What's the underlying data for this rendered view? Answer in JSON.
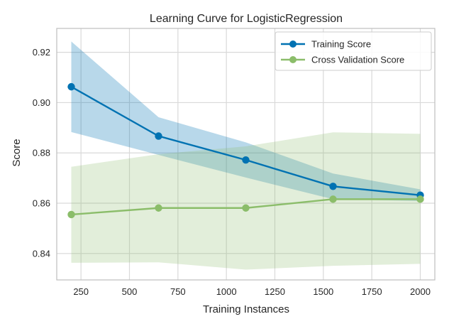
{
  "chart_data": {
    "type": "line",
    "title": "Learning Curve for LogisticRegression",
    "xlabel": "Training Instances",
    "ylabel": "Score",
    "xlim": [
      125,
      2075
    ],
    "ylim": [
      0.8295,
      0.9295
    ],
    "xticks": [
      250,
      500,
      750,
      1000,
      1250,
      1500,
      1750,
      2000
    ],
    "yticks": [
      0.84,
      0.86,
      0.88,
      0.9,
      0.92
    ],
    "xtick_labels": [
      "250",
      "500",
      "750",
      "1000",
      "1250",
      "1500",
      "1750",
      "2000"
    ],
    "ytick_labels": [
      "0.84",
      "0.86",
      "0.88",
      "0.90",
      "0.92"
    ],
    "grid": true,
    "legend_position": "top-right",
    "x": [
      200,
      650,
      1100,
      1550,
      2000
    ],
    "series": [
      {
        "name": "Training Score",
        "color": "#0072b2",
        "band_color": "#0072b2",
        "values": [
          0.9063,
          0.8867,
          0.8772,
          0.8667,
          0.8632
        ],
        "upper": [
          0.9243,
          0.8942,
          0.8842,
          0.8718,
          0.8655
        ],
        "lower": [
          0.8883,
          0.8792,
          0.8702,
          0.8616,
          0.8609
        ]
      },
      {
        "name": "Cross Validation Score",
        "color": "#8bbd6a",
        "band_color": "#8bbd6a",
        "values": [
          0.8555,
          0.8581,
          0.8581,
          0.8616,
          0.8616
        ],
        "upper": [
          0.8745,
          0.8795,
          0.8826,
          0.8882,
          0.8876
        ],
        "lower": [
          0.8363,
          0.8365,
          0.8336,
          0.8351,
          0.8359
        ]
      }
    ]
  }
}
